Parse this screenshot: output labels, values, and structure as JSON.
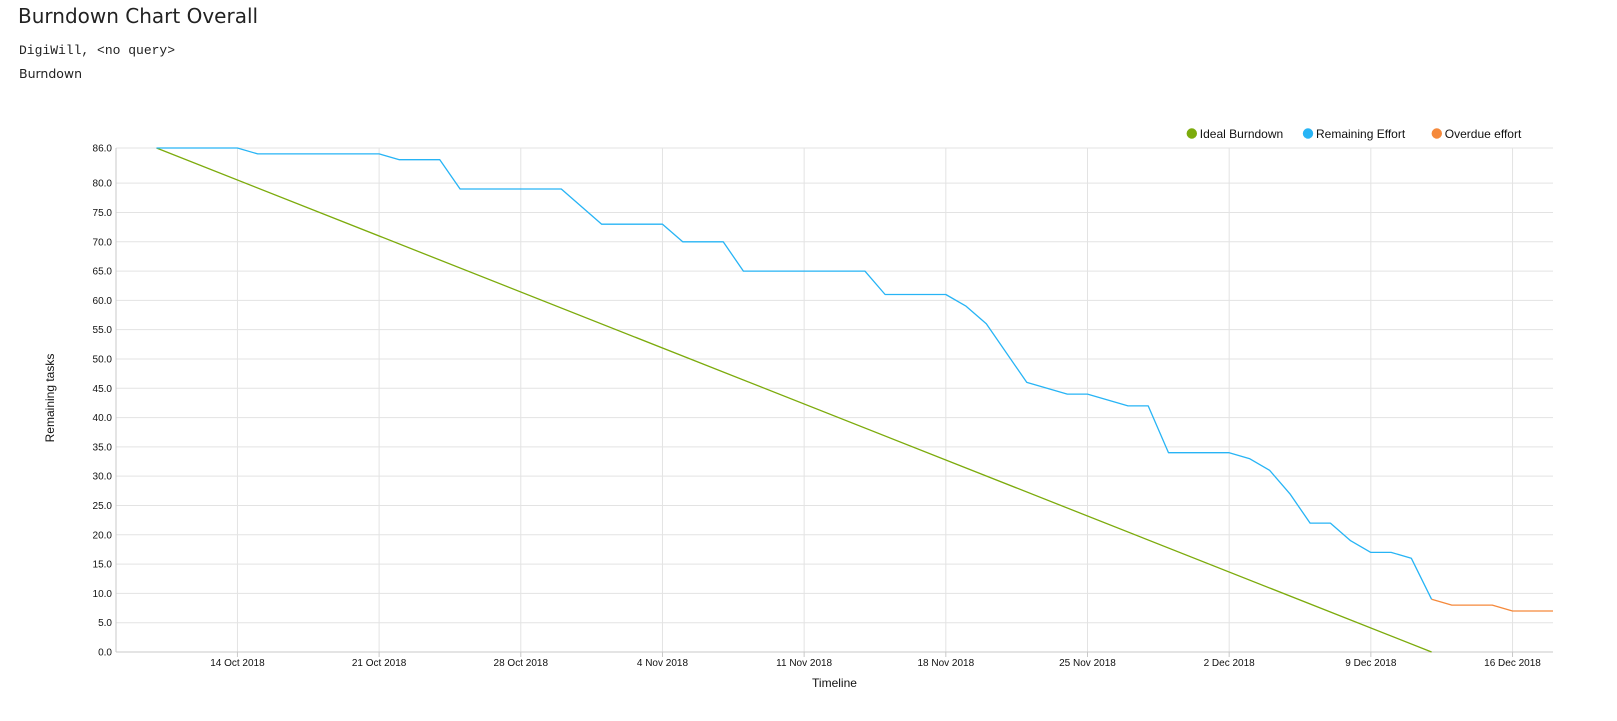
{
  "page": {
    "title": "Burndown Chart Overall",
    "query": "DigiWill, <no query>",
    "chart_kind": "Burndown"
  },
  "colors": {
    "ideal": "#7cab0c",
    "remaining": "#27b4f5",
    "overdue": "#f5893b",
    "grid": "#e3e3e3",
    "axis": "#c8c8c8"
  },
  "chart_data": {
    "type": "line",
    "title": "",
    "xlabel": "Timeline",
    "ylabel": "Remaining tasks",
    "x_range": [
      "2018-10-08",
      "2018-12-18"
    ],
    "ylim": [
      0,
      86
    ],
    "y_ticks": [
      {
        "value": 0,
        "label": "0.0"
      },
      {
        "value": 5,
        "label": "5.0"
      },
      {
        "value": 10,
        "label": "10.0"
      },
      {
        "value": 15,
        "label": "15.0"
      },
      {
        "value": 20,
        "label": "20.0"
      },
      {
        "value": 25,
        "label": "25.0"
      },
      {
        "value": 30,
        "label": "30.0"
      },
      {
        "value": 35,
        "label": "35.0"
      },
      {
        "value": 40,
        "label": "40.0"
      },
      {
        "value": 45,
        "label": "45.0"
      },
      {
        "value": 50,
        "label": "50.0"
      },
      {
        "value": 55,
        "label": "55.0"
      },
      {
        "value": 60,
        "label": "60.0"
      },
      {
        "value": 65,
        "label": "65.0"
      },
      {
        "value": 70,
        "label": "70.0"
      },
      {
        "value": 75,
        "label": "75.0"
      },
      {
        "value": 80,
        "label": "80.0"
      },
      {
        "value": 86,
        "label": "86.0"
      }
    ],
    "x_ticks": [
      {
        "date": "2018-10-14",
        "label": "14 Oct 2018"
      },
      {
        "date": "2018-10-21",
        "label": "21 Oct 2018"
      },
      {
        "date": "2018-10-28",
        "label": "28 Oct 2018"
      },
      {
        "date": "2018-11-04",
        "label": "4 Nov 2018"
      },
      {
        "date": "2018-11-11",
        "label": "11 Nov 2018"
      },
      {
        "date": "2018-11-18",
        "label": "18 Nov 2018"
      },
      {
        "date": "2018-11-25",
        "label": "25 Nov 2018"
      },
      {
        "date": "2018-12-02",
        "label": "2 Dec 2018"
      },
      {
        "date": "2018-12-09",
        "label": "9 Dec 2018"
      },
      {
        "date": "2018-12-16",
        "label": "16 Dec 2018"
      }
    ],
    "grid": true,
    "legend_position": "top-right",
    "series": [
      {
        "name": "Ideal Burndown",
        "color_key": "ideal",
        "points": [
          {
            "date": "2018-10-10",
            "value": 86
          },
          {
            "date": "2018-12-12",
            "value": 0
          }
        ]
      },
      {
        "name": "Remaining Effort",
        "color_key": "remaining",
        "points": [
          {
            "date": "2018-10-10",
            "value": 86
          },
          {
            "date": "2018-10-14",
            "value": 86
          },
          {
            "date": "2018-10-15",
            "value": 85
          },
          {
            "date": "2018-10-21",
            "value": 85
          },
          {
            "date": "2018-10-22",
            "value": 84
          },
          {
            "date": "2018-10-24",
            "value": 84
          },
          {
            "date": "2018-10-25",
            "value": 79
          },
          {
            "date": "2018-10-30",
            "value": 79
          },
          {
            "date": "2018-11-01",
            "value": 73
          },
          {
            "date": "2018-11-04",
            "value": 73
          },
          {
            "date": "2018-11-05",
            "value": 70
          },
          {
            "date": "2018-11-07",
            "value": 70
          },
          {
            "date": "2018-11-08",
            "value": 65
          },
          {
            "date": "2018-11-14",
            "value": 65
          },
          {
            "date": "2018-11-15",
            "value": 61
          },
          {
            "date": "2018-11-18",
            "value": 61
          },
          {
            "date": "2018-11-19",
            "value": 59
          },
          {
            "date": "2018-11-20",
            "value": 56
          },
          {
            "date": "2018-11-22",
            "value": 46
          },
          {
            "date": "2018-11-24",
            "value": 44
          },
          {
            "date": "2018-11-25",
            "value": 44
          },
          {
            "date": "2018-11-27",
            "value": 42
          },
          {
            "date": "2018-11-28",
            "value": 42
          },
          {
            "date": "2018-11-29",
            "value": 34
          },
          {
            "date": "2018-12-02",
            "value": 34
          },
          {
            "date": "2018-12-03",
            "value": 33
          },
          {
            "date": "2018-12-04",
            "value": 31
          },
          {
            "date": "2018-12-05",
            "value": 27
          },
          {
            "date": "2018-12-06",
            "value": 22
          },
          {
            "date": "2018-12-07",
            "value": 22
          },
          {
            "date": "2018-12-08",
            "value": 19
          },
          {
            "date": "2018-12-09",
            "value": 17
          },
          {
            "date": "2018-12-10",
            "value": 17
          },
          {
            "date": "2018-12-11",
            "value": 16
          },
          {
            "date": "2018-12-12",
            "value": 9
          }
        ]
      },
      {
        "name": "Overdue effort",
        "color_key": "overdue",
        "points": [
          {
            "date": "2018-12-12",
            "value": 9
          },
          {
            "date": "2018-12-13",
            "value": 8
          },
          {
            "date": "2018-12-15",
            "value": 8
          },
          {
            "date": "2018-12-16",
            "value": 7
          },
          {
            "date": "2018-12-18",
            "value": 7
          }
        ]
      }
    ]
  }
}
